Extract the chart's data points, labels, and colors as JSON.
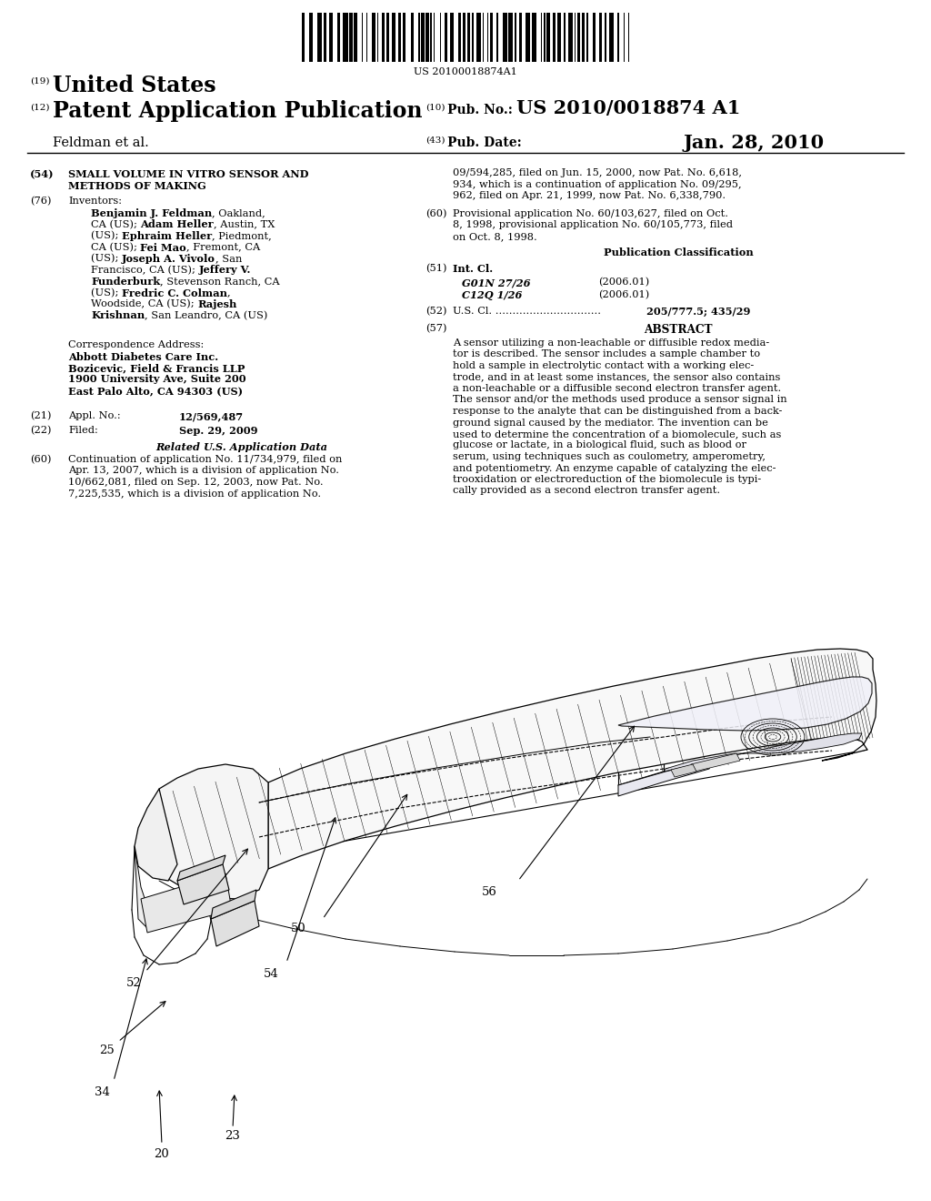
{
  "barcode_text": "US 20100018874A1",
  "header_19_text": "United States",
  "header_12_text": "Patent Application Publication",
  "pub_no_label": "Pub. No.:",
  "pub_no_value": "US 2010/0018874 A1",
  "pub_date_label": "Pub. Date:",
  "pub_date_value": "Jan. 28, 2010",
  "inventors_name": "Feldman et al.",
  "field54_text1": "SMALL VOLUME IN VITRO SENSOR AND",
  "field54_text2": "METHODS OF MAKING",
  "field76_label": "Inventors:",
  "corr_label": "Correspondence Address:",
  "corr_lines": [
    "Abbott Diabetes Care Inc.",
    "Bozicevic, Field & Francis LLP",
    "1900 University Ave, Suite 200",
    "East Palo Alto, CA 94303 (US)"
  ],
  "appl_label": "Appl. No.:",
  "appl_value": "12/569,487",
  "filed_label": "Filed:",
  "filed_value": "Sep. 29, 2009",
  "related_heading": "Related U.S. Application Data",
  "left60_lines": [
    "Continuation of application No. 11/734,979, filed on",
    "Apr. 13, 2007, which is a division of application No.",
    "10/662,081, filed on Sep. 12, 2003, now Pat. No.",
    "7,225,535, which is a division of application No."
  ],
  "right60a_lines": [
    "09/594,285, filed on Jun. 15, 2000, now Pat. No. 6,618,",
    "934, which is a continuation of application No. 09/295,",
    "962, filed on Apr. 21, 1999, now Pat. No. 6,338,790."
  ],
  "right60b_lines": [
    "Provisional application No. 60/103,627, filed on Oct.",
    "8, 1998, provisional application No. 60/105,773, filed",
    "on Oct. 8, 1998."
  ],
  "pub_class_heading": "Publication Classification",
  "int_cl_label": "Int. Cl.",
  "int_cl1": "G01N 27/26",
  "int_cl1_year": "(2006.01)",
  "int_cl2": "C12Q 1/26",
  "int_cl2_year": "(2006.01)",
  "usc_label": "U.S. Cl.",
  "usc_dots": " ...............................",
  "usc_value": "205/777.5; 435/29",
  "abstract_heading": "ABSTRACT",
  "abstract_lines": [
    "A sensor utilizing a non-leachable or diffusible redox media-",
    "tor is described. The sensor includes a sample chamber to",
    "hold a sample in electrolytic contact with a working elec-",
    "trode, and in at least some instances, the sensor also contains",
    "a non-leachable or a diffusible second electron transfer agent.",
    "The sensor and/or the methods used produce a sensor signal in",
    "response to the analyte that can be distinguished from a back-",
    "ground signal caused by the mediator. The invention can be",
    "used to determine the concentration of a biomolecule, such as",
    "glucose or lactate, in a biological fluid, such as blood or",
    "serum, using techniques such as coulometry, amperometry,",
    "and potentiometry. An enzyme capable of catalyzing the elec-",
    "trooxidation or electroreduction of the biomolecule is typi-",
    "cally provided as a second electron transfer agent."
  ],
  "inv_rows": [
    [
      [
        1,
        "Benjamin J. Feldman"
      ],
      [
        0,
        ", Oakland,"
      ]
    ],
    [
      [
        0,
        "CA (US); "
      ],
      [
        1,
        "Adam Heller"
      ],
      [
        0,
        ", Austin, TX"
      ]
    ],
    [
      [
        0,
        "(US); "
      ],
      [
        1,
        "Ephraim Heller"
      ],
      [
        0,
        ", Piedmont,"
      ]
    ],
    [
      [
        0,
        "CA (US); "
      ],
      [
        1,
        "Fei Mao"
      ],
      [
        0,
        ", Fremont, CA"
      ]
    ],
    [
      [
        0,
        "(US); "
      ],
      [
        1,
        "Joseph A. Vivolo"
      ],
      [
        0,
        ", San"
      ]
    ],
    [
      [
        0,
        "Francisco, CA (US); "
      ],
      [
        1,
        "Jeffery V."
      ]
    ],
    [
      [
        1,
        "Funderburk"
      ],
      [
        0,
        ", Stevenson Ranch, CA"
      ]
    ],
    [
      [
        0,
        "(US); "
      ],
      [
        1,
        "Fredric C. Colman"
      ],
      [
        0,
        ","
      ]
    ],
    [
      [
        0,
        "Woodside, CA (US); "
      ],
      [
        1,
        "Rajesh"
      ]
    ],
    [
      [
        1,
        "Krishnan"
      ],
      [
        0,
        ", San Leandro, CA (US)"
      ]
    ]
  ],
  "bg_color": "#ffffff",
  "text_color": "#000000",
  "lh": 12.5,
  "fs_body": 8.2
}
